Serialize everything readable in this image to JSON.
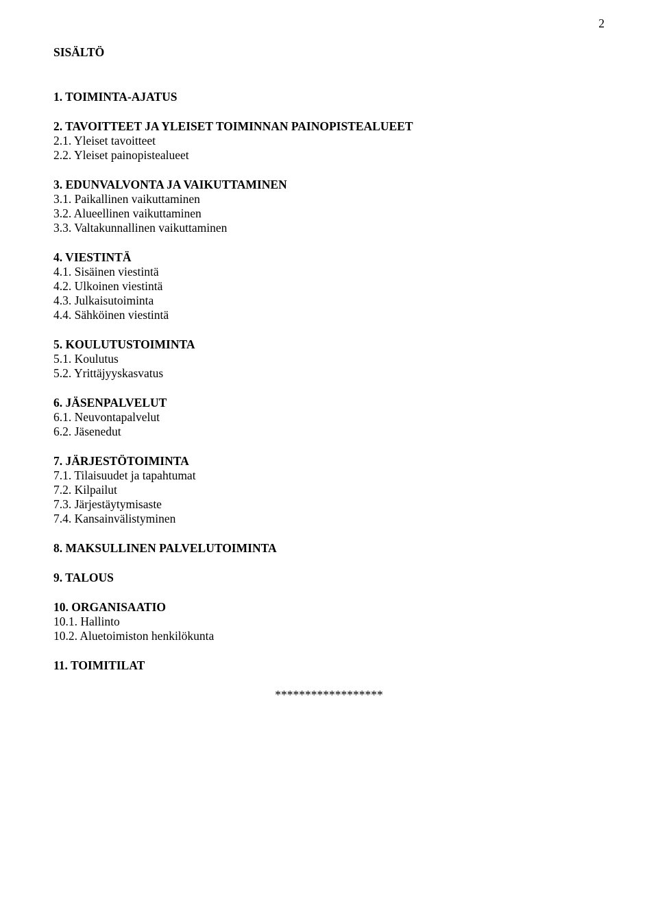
{
  "page_number": "2",
  "title": "SISÄLTÖ",
  "sections": [
    {
      "heading": "1. TOIMINTA-AJATUS",
      "items": []
    },
    {
      "heading": "2. TAVOITTEET JA YLEISET TOIMINNAN PAINOPISTEALUEET",
      "items": [
        "2.1. Yleiset tavoitteet",
        "2.2. Yleiset painopistealueet"
      ]
    },
    {
      "heading": "3. EDUNVALVONTA JA VAIKUTTAMINEN",
      "items": [
        "3.1. Paikallinen vaikuttaminen",
        "3.2. Alueellinen vaikuttaminen",
        "3.3. Valtakunnallinen vaikuttaminen"
      ]
    },
    {
      "heading": "4. VIESTINTÄ",
      "items": [
        "4.1. Sisäinen viestintä",
        "4.2. Ulkoinen viestintä",
        "4.3. Julkaisutoiminta",
        "4.4. Sähköinen viestintä"
      ]
    },
    {
      "heading": "5. KOULUTUSTOIMINTA",
      "items": [
        "5.1. Koulutus",
        "5.2. Yrittäjyyskasvatus"
      ]
    },
    {
      "heading": "6. JÄSENPALVELUT",
      "items": [
        "6.1. Neuvontapalvelut",
        "6.2. Jäsenedut"
      ]
    },
    {
      "heading": "7. JÄRJESTÖTOIMINTA",
      "items": [
        "7.1. Tilaisuudet ja tapahtumat",
        "7.2. Kilpailut",
        "7.3. Järjestäytymisaste",
        "7.4. Kansainvälistyminen"
      ]
    },
    {
      "heading": "8. MAKSULLINEN PALVELUTOIMINTA",
      "items": []
    },
    {
      "heading": "9. TALOUS",
      "items": []
    },
    {
      "heading": "10. ORGANISAATIO",
      "items": [
        "10.1. Hallinto",
        "10.2. Aluetoimiston henkilökunta"
      ]
    },
    {
      "heading": "11. TOIMITILAT",
      "items": []
    }
  ],
  "footer": "******************"
}
